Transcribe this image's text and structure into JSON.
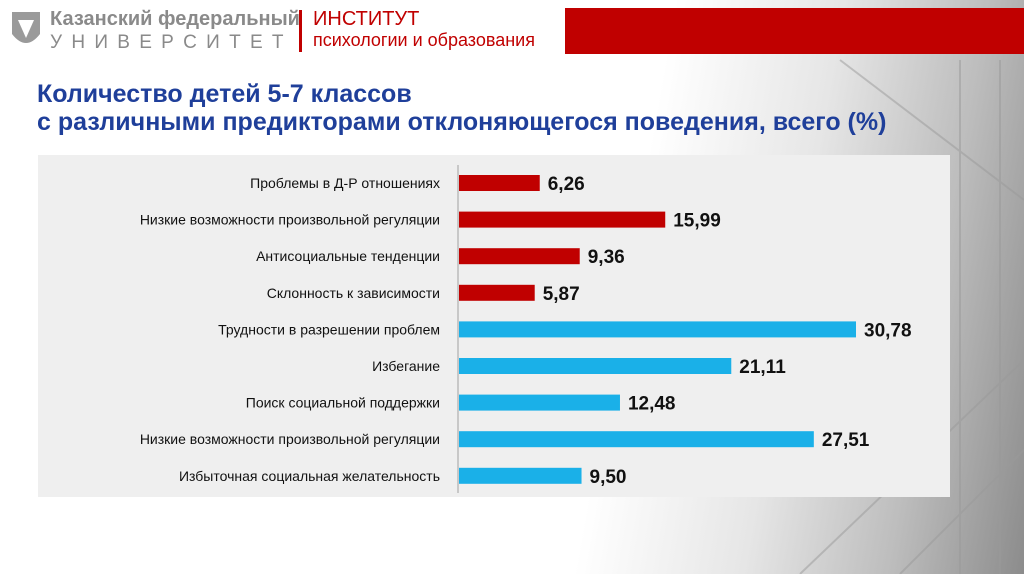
{
  "header": {
    "university_line1": "Казанский федеральный",
    "university_line2": "У Н И В Е Р С И Т Е Т",
    "institute_line1": "ИНСТИТУТ",
    "institute_line2": "психологии и образования"
  },
  "chart_data": {
    "type": "bar",
    "orientation": "horizontal",
    "title": "Количество детей 5-7 классов",
    "subtitle": "с различными предикторами отклоняющегося поведения, всего (%)",
    "categories": [
      "Проблемы в Д-Р отношениях",
      "Низкие возможности произвольной регуляции",
      "Антисоциальные тенденции",
      "Склонность к зависимости",
      "Трудности в разрешении проблем",
      "Избегание",
      "Поиск социальной поддержки",
      "Низкие возможности произвольной регуляции",
      "Избыточная социальная желательность"
    ],
    "values": [
      6.26,
      15.99,
      9.36,
      5.87,
      30.78,
      21.11,
      12.48,
      27.51,
      9.5
    ],
    "value_labels": [
      "6,26",
      "15,99",
      "9,36",
      "5,87",
      "30,78",
      "21,11",
      "12,48",
      "27,51",
      "9,50"
    ],
    "colors": [
      "#c00000",
      "#c00000",
      "#c00000",
      "#c00000",
      "#1ab0e8",
      "#1ab0e8",
      "#1ab0e8",
      "#1ab0e8",
      "#1ab0e8"
    ]
  }
}
